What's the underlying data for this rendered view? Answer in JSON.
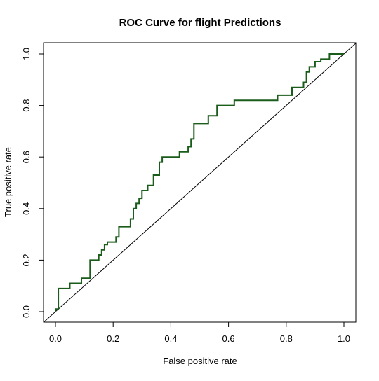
{
  "chart_data": {
    "type": "line",
    "title": "ROC Curve for flight Predictions",
    "xlabel": "False positive rate",
    "ylabel": "True positive rate",
    "xlim": [
      0,
      1
    ],
    "ylim": [
      0,
      1
    ],
    "xticks": [
      "0.0",
      "0.2",
      "0.4",
      "0.6",
      "0.8",
      "1.0"
    ],
    "yticks": [
      "0.0",
      "0.2",
      "0.4",
      "0.6",
      "0.8",
      "1.0"
    ],
    "grid": false,
    "legend": "none",
    "series": [
      {
        "color": "#1a5c1a",
        "x": [
          0.0,
          0.0,
          0.01,
          0.01,
          0.01,
          0.05,
          0.05,
          0.09,
          0.09,
          0.12,
          0.12,
          0.15,
          0.15,
          0.16,
          0.16,
          0.17,
          0.17,
          0.18,
          0.18,
          0.21,
          0.21,
          0.22,
          0.22,
          0.26,
          0.26,
          0.27,
          0.27,
          0.28,
          0.28,
          0.29,
          0.29,
          0.3,
          0.3,
          0.32,
          0.32,
          0.34,
          0.34,
          0.36,
          0.36,
          0.37,
          0.37,
          0.43,
          0.43,
          0.46,
          0.46,
          0.47,
          0.47,
          0.48,
          0.48,
          0.53,
          0.53,
          0.56,
          0.56,
          0.62,
          0.62,
          0.77,
          0.77,
          0.82,
          0.82,
          0.86,
          0.86,
          0.87,
          0.87,
          0.88,
          0.88,
          0.9,
          0.9,
          0.92,
          0.92,
          0.95,
          0.95,
          1.0
        ],
        "y": [
          0.0,
          0.01,
          0.01,
          0.05,
          0.09,
          0.09,
          0.11,
          0.11,
          0.13,
          0.13,
          0.2,
          0.2,
          0.22,
          0.22,
          0.24,
          0.24,
          0.26,
          0.26,
          0.27,
          0.27,
          0.29,
          0.29,
          0.33,
          0.33,
          0.36,
          0.36,
          0.4,
          0.4,
          0.42,
          0.42,
          0.44,
          0.44,
          0.47,
          0.47,
          0.49,
          0.49,
          0.53,
          0.53,
          0.58,
          0.58,
          0.6,
          0.6,
          0.62,
          0.62,
          0.64,
          0.64,
          0.67,
          0.67,
          0.73,
          0.73,
          0.76,
          0.76,
          0.8,
          0.8,
          0.82,
          0.82,
          0.84,
          0.84,
          0.87,
          0.87,
          0.89,
          0.89,
          0.93,
          0.93,
          0.95,
          0.95,
          0.97,
          0.97,
          0.98,
          0.98,
          1.0,
          1.0
        ]
      }
    ],
    "reference_line": {
      "x": [
        0,
        1
      ],
      "y": [
        0,
        1
      ],
      "color": "#000000"
    }
  }
}
